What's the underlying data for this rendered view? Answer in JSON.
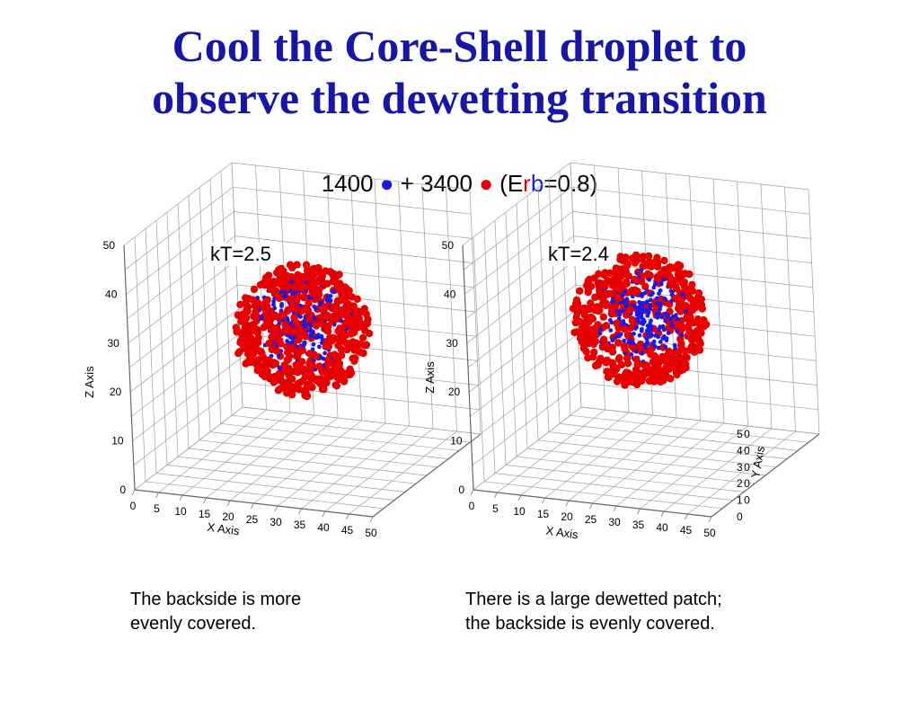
{
  "slide": {
    "title_line1": "Cool the Core-Shell droplet to",
    "title_line2": "observe the dewetting transition",
    "subtitle": {
      "count_a": "1400",
      "dot": "●",
      "plus": "+",
      "count_b": "3400",
      "paren_open": "(E",
      "r": "r",
      "b": "b",
      "eq": "=0.8)"
    },
    "caption_left_line1": "The backside is more",
    "caption_left_line2": "evenly covered.",
    "caption_right_line1": "There is a large dewetted patch;",
    "caption_right_line2": "the backside is evenly covered.",
    "colors": {
      "title": "#1616a8",
      "blue_particles": "#1a1ae6",
      "red_particles": "#e60000",
      "grid": "#a0a0a0"
    }
  },
  "chart_data": [
    {
      "type": "scatter",
      "title": "kT=2.5",
      "xlabel": "X Axis",
      "zlabel": "Z Axis",
      "x_ticks": [
        "0",
        "5",
        "10",
        "15",
        "20",
        "25",
        "30",
        "35",
        "40",
        "45",
        "50"
      ],
      "z_ticks": [
        "0",
        "10",
        "20",
        "30",
        "40",
        "50"
      ],
      "xlim": [
        0,
        50
      ],
      "zlim": [
        0,
        50
      ],
      "series": [
        {
          "color": "#1a1ae6",
          "particles": 1400,
          "center": [
            25,
            25,
            28
          ],
          "radius": 10
        },
        {
          "color": "#e60000",
          "particles": 3400,
          "center": [
            25,
            25,
            27
          ],
          "radius": 13
        }
      ]
    },
    {
      "type": "scatter",
      "title": "kT=2.4",
      "xlabel": "X Axis",
      "ylabel": "Y Axis",
      "zlabel": "Z Axis",
      "x_ticks": [
        "0",
        "5",
        "10",
        "15",
        "20",
        "25",
        "30",
        "35",
        "40",
        "45",
        "50"
      ],
      "y_ticks": [
        "0",
        "10",
        "20",
        "30",
        "40",
        "50"
      ],
      "z_ticks": [
        "0",
        "10",
        "20",
        "30",
        "40",
        "50"
      ],
      "xlim": [
        0,
        50
      ],
      "ylim": [
        0,
        50
      ],
      "zlim": [
        0,
        50
      ],
      "series": [
        {
          "color": "#1a1ae6",
          "particles": 1400,
          "center": [
            25,
            25,
            30
          ],
          "radius": 10
        },
        {
          "color": "#e60000",
          "particles": 3400,
          "center": [
            25,
            25,
            29
          ],
          "radius": 13
        }
      ]
    }
  ]
}
